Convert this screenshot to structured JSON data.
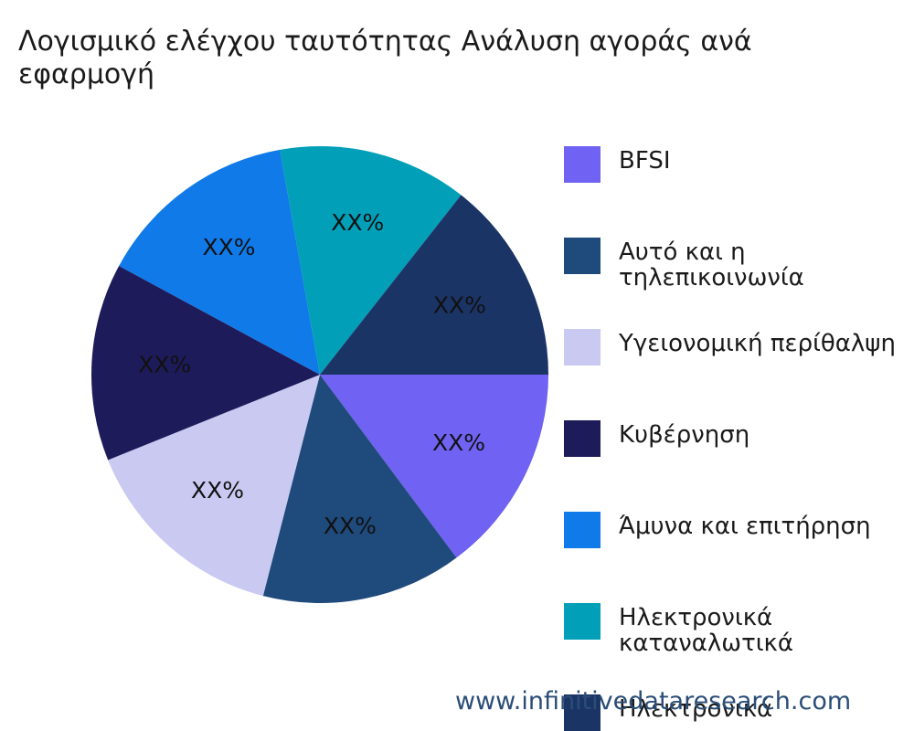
{
  "title": "Λογισμικό ελέγχου ταυτότητας Ανάλυση αγοράς ανά εφαρμογή",
  "watermark": "www.infinitivedataresearch.com",
  "chart_data": {
    "type": "pie",
    "title": "Λογισμικό ελέγχου ταυτότητας Ανάλυση αγοράς ανά εφαρμογή",
    "legend_position": "right",
    "slices": [
      {
        "name": "BFSI",
        "value": 14.8,
        "label": "XX%",
        "color": "#7062f2"
      },
      {
        "name": "Αυτό και η τηλεπικοινωνία",
        "value": 14.2,
        "label": "XX%",
        "color": "#1f4a7c"
      },
      {
        "name": "Υγειονομική περίθαλψη",
        "value": 14.9,
        "label": "XX%",
        "color": "#c9c9f1"
      },
      {
        "name": "Κυβέρνηση",
        "value": 14.0,
        "label": "XX%",
        "color": "#1e1b5a"
      },
      {
        "name": "Άμυνα και επιτήρηση",
        "value": 14.3,
        "label": "XX%",
        "color": "#0f7ae8"
      },
      {
        "name": "Ηλεκτρονικά καταναλωτικά",
        "value": 13.4,
        "label": "XX%",
        "color": "#019fb8"
      },
      {
        "name": "Ηλεκτρονικά",
        "value": 14.4,
        "label": "XX%",
        "color": "#1b3466"
      }
    ]
  }
}
